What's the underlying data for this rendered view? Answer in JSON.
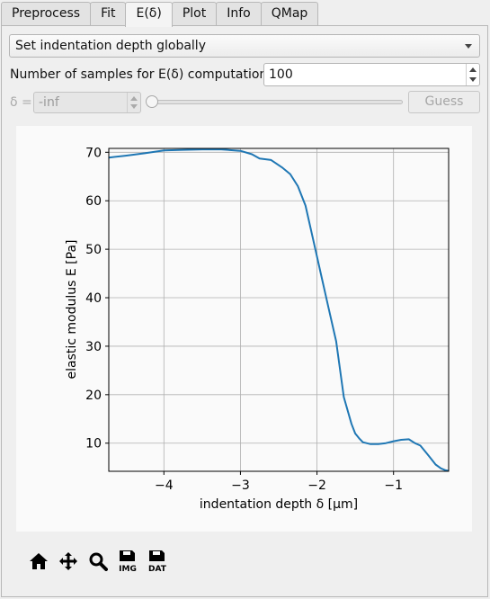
{
  "tabs": [
    {
      "label": "Preprocess"
    },
    {
      "label": "Fit"
    },
    {
      "label": "E(δ)",
      "active": true
    },
    {
      "label": "Plot"
    },
    {
      "label": "Info"
    },
    {
      "label": "QMap"
    }
  ],
  "depth_mode": {
    "selected": "Set indentation depth globally"
  },
  "samples": {
    "label": "Number of samples for E(δ) computation",
    "value": "100"
  },
  "delta": {
    "label": "δ =",
    "value": "-inf"
  },
  "guess_button": {
    "label": "Guess"
  },
  "toolbar": {
    "icons": [
      "home-icon",
      "pan-icon",
      "zoom-icon",
      "save-image-icon",
      "save-data-icon"
    ],
    "img_label": "IMG",
    "dat_label": "DAT"
  },
  "chart_data": {
    "type": "line",
    "xlabel": "indentation depth δ [µm]",
    "ylabel": "elastic modulus E [Pa]",
    "xlim": [
      -4.72,
      -0.28
    ],
    "ylim": [
      4.2,
      70.8
    ],
    "xticks": [
      -4,
      -3,
      -2,
      -1
    ],
    "xtick_labels": [
      "−4",
      "−3",
      "−2",
      "−1"
    ],
    "yticks": [
      10,
      20,
      30,
      40,
      50,
      60,
      70
    ],
    "grid": true,
    "color": "#1f77b4",
    "series": [
      {
        "x": [
          -4.72,
          -4.5,
          -4.25,
          -4.0,
          -3.75,
          -3.5,
          -3.25,
          -3.0,
          -2.85,
          -2.75,
          -2.6,
          -2.45,
          -2.35,
          -2.25,
          -2.15,
          -2.05,
          -1.95,
          -1.85,
          -1.75,
          -1.65,
          -1.55,
          -1.5,
          -1.45,
          -1.4,
          -1.3,
          -1.2,
          -1.1,
          -1.0,
          -0.9,
          -0.8,
          -0.72,
          -0.65,
          -0.55,
          -0.45,
          -0.38,
          -0.32,
          -0.28
        ],
        "y": [
          68.9,
          69.3,
          69.8,
          70.4,
          70.5,
          70.6,
          70.6,
          70.3,
          69.6,
          68.7,
          68.4,
          66.8,
          65.5,
          63.0,
          59.0,
          52.0,
          45.0,
          38.0,
          31.0,
          19.5,
          14.0,
          12.0,
          11.0,
          10.2,
          9.8,
          9.8,
          10.0,
          10.4,
          10.7,
          10.8,
          10.0,
          9.5,
          7.6,
          5.6,
          4.8,
          4.4,
          4.3
        ]
      }
    ]
  }
}
